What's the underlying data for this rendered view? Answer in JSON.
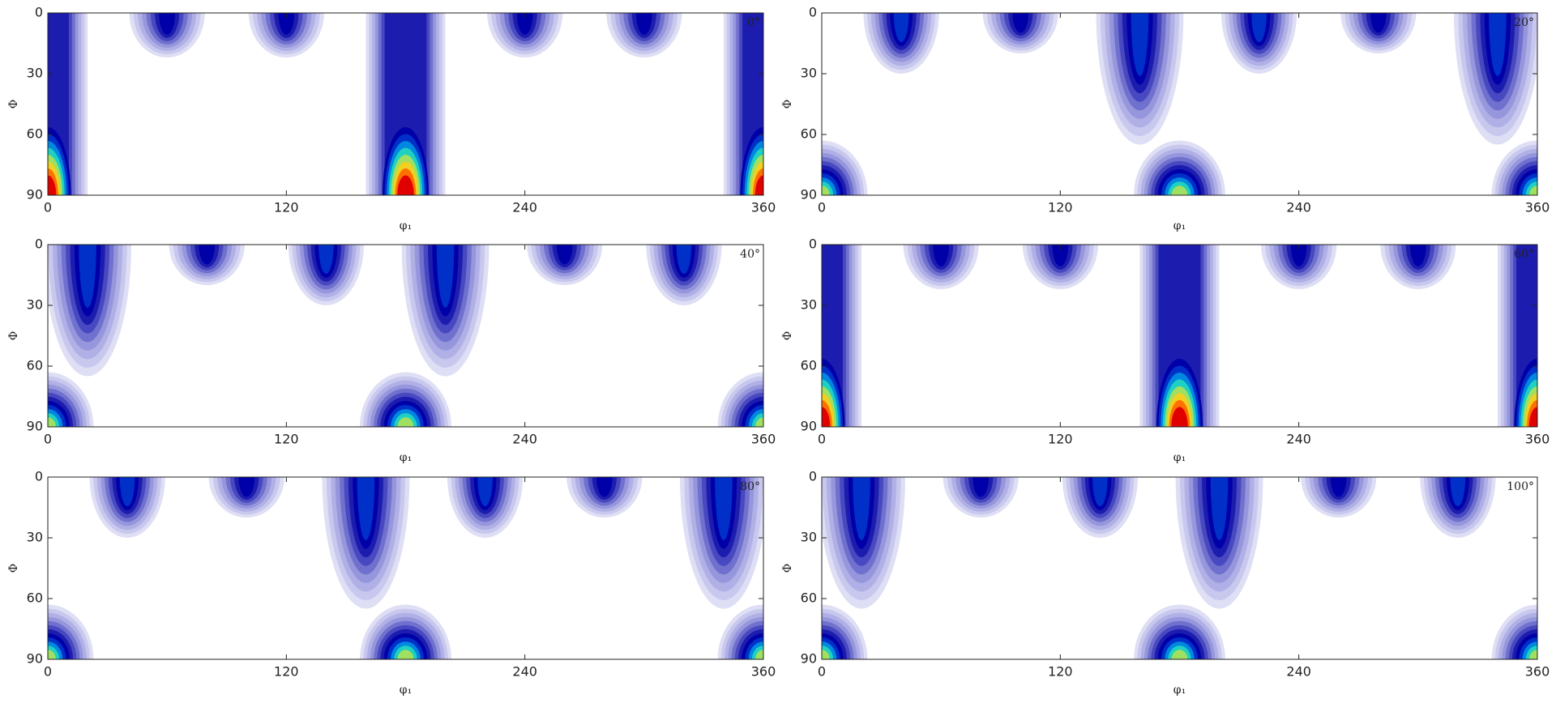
{
  "chart_data": [
    {
      "type": "contour",
      "title": "0°",
      "xlabel": "φ₁",
      "ylabel": "Φ",
      "xlim": [
        0,
        360
      ],
      "ylim": [
        0,
        90
      ],
      "y_inverted": true,
      "xticks": [
        0,
        120,
        240,
        360
      ],
      "yticks": [
        0,
        30,
        60,
        90
      ],
      "colors": [
        "#dedef5",
        "#c8c8ee",
        "#b0b0e6",
        "#9696dc",
        "#7070ce",
        "#4848c0",
        "#1c1cae",
        "#0000a8",
        "#0030c8",
        "#0088e0",
        "#20d0c0",
        "#a0e060",
        "#f0d020",
        "#ff7000",
        "#e00000"
      ],
      "features": [
        {
          "x": 0,
          "y0": 0,
          "y1": 90,
          "hw": 20,
          "max": 15
        },
        {
          "x": 180,
          "y0": 0,
          "y1": 90,
          "hw": 20,
          "max": 15
        },
        {
          "x": 360,
          "y0": 0,
          "y1": 90,
          "hw": 20,
          "max": 15
        },
        {
          "x": 60,
          "y0": 0,
          "y1": 22,
          "hw": 19,
          "max": 8
        },
        {
          "x": 120,
          "y0": 0,
          "y1": 22,
          "hw": 19,
          "max": 8
        },
        {
          "x": 240,
          "y0": 0,
          "y1": 22,
          "hw": 19,
          "max": 8
        },
        {
          "x": 300,
          "y0": 0,
          "y1": 22,
          "hw": 19,
          "max": 8
        }
      ]
    },
    {
      "type": "contour",
      "title": "20°",
      "xlabel": "φ₁",
      "ylabel": "Φ",
      "xlim": [
        0,
        360
      ],
      "ylim": [
        0,
        90
      ],
      "y_inverted": true,
      "xticks": [
        0,
        120,
        240,
        360
      ],
      "yticks": [
        0,
        30,
        60,
        90
      ],
      "colors": [
        "#dedef5",
        "#c8c8ee",
        "#b0b0e6",
        "#9696dc",
        "#7070ce",
        "#4848c0",
        "#1c1cae",
        "#0000a8",
        "#0030c8",
        "#0088e0",
        "#20d0c0",
        "#a0e060",
        "#f0d020",
        "#ff7000",
        "#e00000"
      ],
      "features": [
        {
          "x": 40,
          "y0": 0,
          "y1": 30,
          "hw": 19,
          "max": 9
        },
        {
          "x": 100,
          "y0": 0,
          "y1": 20,
          "hw": 19,
          "max": 8
        },
        {
          "x": 160,
          "y0": 0,
          "y1": 65,
          "hw": 22,
          "max": 9
        },
        {
          "x": 220,
          "y0": 0,
          "y1": 30,
          "hw": 19,
          "max": 9
        },
        {
          "x": 280,
          "y0": 0,
          "y1": 20,
          "hw": 19,
          "max": 8
        },
        {
          "x": 340,
          "y0": 0,
          "y1": 65,
          "hw": 22,
          "max": 9
        },
        {
          "x": 0,
          "y0": 63,
          "y1": 90,
          "hw": 23,
          "max": 12
        },
        {
          "x": 180,
          "y0": 63,
          "y1": 90,
          "hw": 23,
          "max": 12
        },
        {
          "x": 360,
          "y0": 63,
          "y1": 90,
          "hw": 23,
          "max": 12
        }
      ]
    },
    {
      "type": "contour",
      "title": "40°",
      "xlabel": "φ₁",
      "ylabel": "Φ",
      "xlim": [
        0,
        360
      ],
      "ylim": [
        0,
        90
      ],
      "y_inverted": true,
      "xticks": [
        0,
        120,
        240,
        360
      ],
      "yticks": [
        0,
        30,
        60,
        90
      ],
      "colors": [
        "#dedef5",
        "#c8c8ee",
        "#b0b0e6",
        "#9696dc",
        "#7070ce",
        "#4848c0",
        "#1c1cae",
        "#0000a8",
        "#0030c8",
        "#0088e0",
        "#20d0c0",
        "#a0e060",
        "#f0d020",
        "#ff7000",
        "#e00000"
      ],
      "features": [
        {
          "x": 20,
          "y0": 0,
          "y1": 65,
          "hw": 22,
          "max": 9
        },
        {
          "x": 80,
          "y0": 0,
          "y1": 20,
          "hw": 19,
          "max": 8
        },
        {
          "x": 140,
          "y0": 0,
          "y1": 30,
          "hw": 19,
          "max": 9
        },
        {
          "x": 200,
          "y0": 0,
          "y1": 65,
          "hw": 22,
          "max": 9
        },
        {
          "x": 260,
          "y0": 0,
          "y1": 20,
          "hw": 19,
          "max": 8
        },
        {
          "x": 320,
          "y0": 0,
          "y1": 30,
          "hw": 19,
          "max": 9
        },
        {
          "x": 0,
          "y0": 63,
          "y1": 90,
          "hw": 23,
          "max": 12
        },
        {
          "x": 180,
          "y0": 63,
          "y1": 90,
          "hw": 23,
          "max": 12
        },
        {
          "x": 360,
          "y0": 63,
          "y1": 90,
          "hw": 23,
          "max": 12
        }
      ]
    },
    {
      "type": "contour",
      "title": "60°",
      "xlabel": "φ₁",
      "ylabel": "Φ",
      "xlim": [
        0,
        360
      ],
      "ylim": [
        0,
        90
      ],
      "y_inverted": true,
      "xticks": [
        0,
        120,
        240,
        360
      ],
      "yticks": [
        0,
        30,
        60,
        90
      ],
      "colors": [
        "#dedef5",
        "#c8c8ee",
        "#b0b0e6",
        "#9696dc",
        "#7070ce",
        "#4848c0",
        "#1c1cae",
        "#0000a8",
        "#0030c8",
        "#0088e0",
        "#20d0c0",
        "#a0e060",
        "#f0d020",
        "#ff7000",
        "#e00000"
      ],
      "features": [
        {
          "x": 0,
          "y0": 0,
          "y1": 90,
          "hw": 20,
          "max": 15
        },
        {
          "x": 180,
          "y0": 0,
          "y1": 90,
          "hw": 20,
          "max": 15
        },
        {
          "x": 360,
          "y0": 0,
          "y1": 90,
          "hw": 20,
          "max": 15
        },
        {
          "x": 60,
          "y0": 0,
          "y1": 22,
          "hw": 19,
          "max": 8
        },
        {
          "x": 120,
          "y0": 0,
          "y1": 22,
          "hw": 19,
          "max": 8
        },
        {
          "x": 240,
          "y0": 0,
          "y1": 22,
          "hw": 19,
          "max": 8
        },
        {
          "x": 300,
          "y0": 0,
          "y1": 22,
          "hw": 19,
          "max": 8
        }
      ]
    },
    {
      "type": "contour",
      "title": "80°",
      "xlabel": "φ₁",
      "ylabel": "Φ",
      "xlim": [
        0,
        360
      ],
      "ylim": [
        0,
        90
      ],
      "y_inverted": true,
      "xticks": [
        0,
        120,
        240,
        360
      ],
      "yticks": [
        0,
        30,
        60,
        90
      ],
      "colors": [
        "#dedef5",
        "#c8c8ee",
        "#b0b0e6",
        "#9696dc",
        "#7070ce",
        "#4848c0",
        "#1c1cae",
        "#0000a8",
        "#0030c8",
        "#0088e0",
        "#20d0c0",
        "#a0e060",
        "#f0d020",
        "#ff7000",
        "#e00000"
      ],
      "features": [
        {
          "x": 40,
          "y0": 0,
          "y1": 30,
          "hw": 19,
          "max": 9
        },
        {
          "x": 100,
          "y0": 0,
          "y1": 20,
          "hw": 19,
          "max": 8
        },
        {
          "x": 160,
          "y0": 0,
          "y1": 65,
          "hw": 22,
          "max": 9
        },
        {
          "x": 220,
          "y0": 0,
          "y1": 30,
          "hw": 19,
          "max": 9
        },
        {
          "x": 280,
          "y0": 0,
          "y1": 20,
          "hw": 19,
          "max": 8
        },
        {
          "x": 340,
          "y0": 0,
          "y1": 65,
          "hw": 22,
          "max": 9
        },
        {
          "x": 0,
          "y0": 63,
          "y1": 90,
          "hw": 23,
          "max": 12
        },
        {
          "x": 180,
          "y0": 63,
          "y1": 90,
          "hw": 23,
          "max": 12
        },
        {
          "x": 360,
          "y0": 63,
          "y1": 90,
          "hw": 23,
          "max": 12
        }
      ]
    },
    {
      "type": "contour",
      "title": "100°",
      "xlabel": "φ₁",
      "ylabel": "Φ",
      "xlim": [
        0,
        360
      ],
      "ylim": [
        0,
        90
      ],
      "y_inverted": true,
      "xticks": [
        0,
        120,
        240,
        360
      ],
      "yticks": [
        0,
        30,
        60,
        90
      ],
      "colors": [
        "#dedef5",
        "#c8c8ee",
        "#b0b0e6",
        "#9696dc",
        "#7070ce",
        "#4848c0",
        "#1c1cae",
        "#0000a8",
        "#0030c8",
        "#0088e0",
        "#20d0c0",
        "#a0e060",
        "#f0d020",
        "#ff7000",
        "#e00000"
      ],
      "features": [
        {
          "x": 20,
          "y0": 0,
          "y1": 65,
          "hw": 22,
          "max": 9
        },
        {
          "x": 80,
          "y0": 0,
          "y1": 20,
          "hw": 19,
          "max": 8
        },
        {
          "x": 140,
          "y0": 0,
          "y1": 30,
          "hw": 19,
          "max": 9
        },
        {
          "x": 200,
          "y0": 0,
          "y1": 65,
          "hw": 22,
          "max": 9
        },
        {
          "x": 260,
          "y0": 0,
          "y1": 20,
          "hw": 19,
          "max": 8
        },
        {
          "x": 320,
          "y0": 0,
          "y1": 30,
          "hw": 19,
          "max": 9
        },
        {
          "x": 0,
          "y0": 63,
          "y1": 90,
          "hw": 23,
          "max": 12
        },
        {
          "x": 180,
          "y0": 63,
          "y1": 90,
          "hw": 23,
          "max": 12
        },
        {
          "x": 360,
          "y0": 63,
          "y1": 90,
          "hw": 23,
          "max": 12
        }
      ]
    }
  ]
}
